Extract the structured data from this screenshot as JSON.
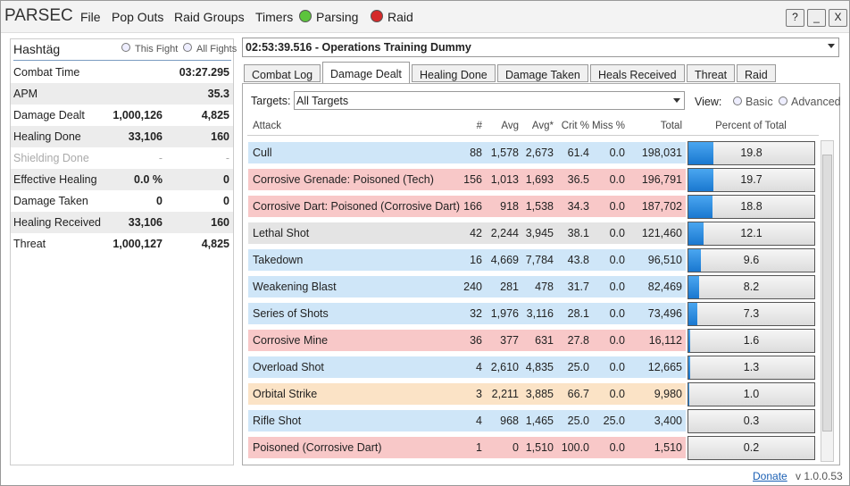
{
  "titlebar": {
    "app": "PARSEC",
    "menu": [
      "File",
      "Pop Outs",
      "Raid Groups",
      "Timers"
    ],
    "parsing": "Parsing",
    "raid": "Raid",
    "buttons": [
      "?",
      "_",
      "X"
    ]
  },
  "left": {
    "name": "Hashtäg",
    "radios": [
      "This Fight",
      "All Fights"
    ],
    "rows": [
      {
        "label": "Combat Time",
        "value": "03:27.295"
      },
      {
        "label": "APM",
        "value": "35.3"
      },
      {
        "label": "Damage Dealt",
        "total": "1,000,126",
        "value": "4,825"
      },
      {
        "label": "Healing Done",
        "total": "33,106",
        "value": "160"
      },
      {
        "label": "Shielding Done",
        "total": "-",
        "value": "-"
      },
      {
        "label": "Effective Healing",
        "total": "0.0 %",
        "value": "0"
      },
      {
        "label": "Damage Taken",
        "total": "0",
        "value": "0"
      },
      {
        "label": "Healing Received",
        "total": "33,106",
        "value": "160"
      },
      {
        "label": "Threat",
        "total": "1,000,127",
        "value": "4,825"
      }
    ]
  },
  "encounter": "02:53:39.516 - Operations Training Dummy",
  "tabs": [
    "Combat Log",
    "Damage Dealt",
    "Healing Done",
    "Damage Taken",
    "Heals Received",
    "Threat",
    "Raid"
  ],
  "filters": {
    "targets_label": "Targets:",
    "targets": "All Targets",
    "view_label": "View:",
    "views": [
      "Basic",
      "Advanced"
    ]
  },
  "table": {
    "headers": [
      "Attack",
      "#",
      "Avg",
      "Avg*",
      "Crit %",
      "Miss %",
      "Total",
      "Percent of Total"
    ],
    "rows": [
      {
        "color": "#cfe6f8",
        "cells": [
          "Cull",
          "88",
          "1,578",
          "2,673",
          "61.4",
          "0.0",
          "198,031",
          "19.8"
        ]
      },
      {
        "color": "#f8c8c8",
        "cells": [
          "Corrosive Grenade: Poisoned (Tech)",
          "156",
          "1,013",
          "1,693",
          "36.5",
          "0.0",
          "196,791",
          "19.7"
        ]
      },
      {
        "color": "#f8c8c8",
        "cells": [
          "Corrosive Dart: Poisoned (Corrosive Dart)",
          "166",
          "918",
          "1,538",
          "34.3",
          "0.0",
          "187,702",
          "18.8"
        ]
      },
      {
        "color": "#e4e4e4",
        "cells": [
          "Lethal Shot",
          "42",
          "2,244",
          "3,945",
          "38.1",
          "0.0",
          "121,460",
          "12.1"
        ]
      },
      {
        "color": "#cfe6f8",
        "cells": [
          "Takedown",
          "16",
          "4,669",
          "7,784",
          "43.8",
          "0.0",
          "96,510",
          "9.6"
        ]
      },
      {
        "color": "#cfe6f8",
        "cells": [
          "Weakening Blast",
          "240",
          "281",
          "478",
          "31.7",
          "0.0",
          "82,469",
          "8.2"
        ]
      },
      {
        "color": "#cfe6f8",
        "cells": [
          "Series of Shots",
          "32",
          "1,976",
          "3,116",
          "28.1",
          "0.0",
          "73,496",
          "7.3"
        ]
      },
      {
        "color": "#f8c8c8",
        "cells": [
          "Corrosive Mine",
          "36",
          "377",
          "631",
          "27.8",
          "0.0",
          "16,112",
          "1.6"
        ]
      },
      {
        "color": "#cfe6f8",
        "cells": [
          "Overload Shot",
          "4",
          "2,610",
          "4,835",
          "25.0",
          "0.0",
          "12,665",
          "1.3"
        ]
      },
      {
        "color": "#fbe3c6",
        "cells": [
          "Orbital Strike",
          "3",
          "2,211",
          "3,885",
          "66.7",
          "0.0",
          "9,980",
          "1.0"
        ]
      },
      {
        "color": "#cfe6f8",
        "cells": [
          "Rifle Shot",
          "4",
          "968",
          "1,465",
          "25.0",
          "25.0",
          "3,400",
          "0.3"
        ]
      },
      {
        "color": "#f8c8c8",
        "cells": [
          "Poisoned (Corrosive Dart)",
          "1",
          "0",
          "1,510",
          "100.0",
          "0.0",
          "1,510",
          "0.2"
        ]
      }
    ]
  },
  "footer": {
    "donate": "Donate",
    "version": "v 1.0.0.53"
  }
}
